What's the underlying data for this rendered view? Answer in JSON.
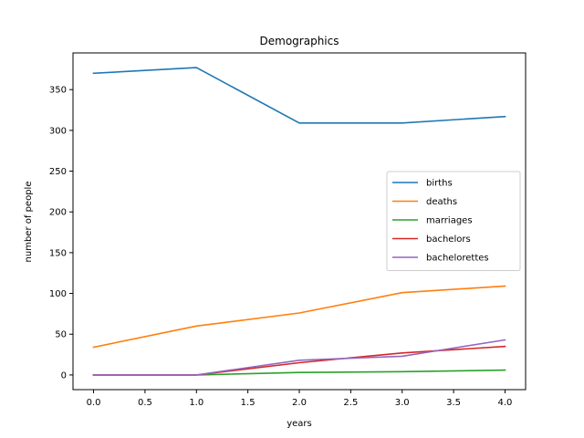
{
  "chart_data": {
    "type": "line",
    "title": "Demographics",
    "xlabel": "years",
    "ylabel": "number of people",
    "x": [
      0,
      1,
      2,
      3,
      4
    ],
    "xlim": [
      -0.2,
      4.2
    ],
    "ylim": [
      -18,
      395
    ],
    "xticks": [
      0.0,
      0.5,
      1.0,
      1.5,
      2.0,
      2.5,
      3.0,
      3.5,
      4.0
    ],
    "xtick_labels": [
      "0.0",
      "0.5",
      "1.0",
      "1.5",
      "2.0",
      "2.5",
      "3.0",
      "3.5",
      "4.0"
    ],
    "yticks": [
      0,
      50,
      100,
      150,
      200,
      250,
      300,
      350
    ],
    "ytick_labels": [
      "0",
      "50",
      "100",
      "150",
      "200",
      "250",
      "300",
      "350"
    ],
    "grid": false,
    "legend_position": "center-right",
    "series": [
      {
        "name": "births",
        "color": "#1f77b4",
        "values": [
          370,
          377,
          309,
          309,
          317
        ]
      },
      {
        "name": "deaths",
        "color": "#ff7f0e",
        "values": [
          34,
          60,
          76,
          101,
          109
        ]
      },
      {
        "name": "marriages",
        "color": "#2ca02c",
        "values": [
          0,
          0,
          3,
          4,
          6
        ]
      },
      {
        "name": "bachelors",
        "color": "#d62728",
        "values": [
          0,
          0,
          15,
          27,
          35
        ]
      },
      {
        "name": "bachelorettes",
        "color": "#9467bd",
        "values": [
          0,
          0,
          18,
          23,
          43
        ]
      }
    ]
  }
}
